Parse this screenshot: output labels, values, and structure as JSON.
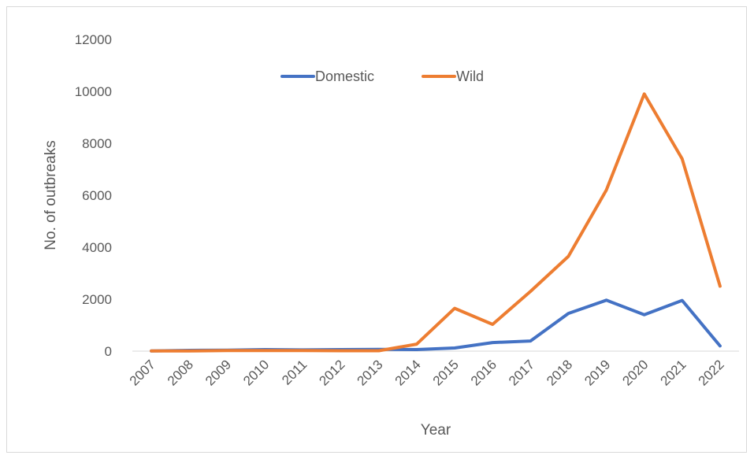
{
  "chart_data": {
    "type": "line",
    "title": "",
    "xlabel": "Year",
    "ylabel": "No. of outbreaks",
    "categories": [
      "2007",
      "2008",
      "2009",
      "2010",
      "2011",
      "2012",
      "2013",
      "2014",
      "2015",
      "2016",
      "2017",
      "2018",
      "2019",
      "2020",
      "2021",
      "2022"
    ],
    "ylim": [
      0,
      12000
    ],
    "yticks": [
      "0",
      "2000",
      "4000",
      "6000",
      "8000",
      "10000",
      "12000"
    ],
    "grid": false,
    "legend_position": "top-center",
    "series": [
      {
        "name": "Domestic",
        "color": "#4472C4",
        "values": [
          5,
          30,
          40,
          60,
          50,
          60,
          70,
          60,
          120,
          330,
          390,
          1450,
          1960,
          1400,
          1950,
          200
        ]
      },
      {
        "name": "Wild",
        "color": "#ED7D31",
        "values": [
          5,
          5,
          20,
          20,
          20,
          15,
          15,
          270,
          1650,
          1030,
          2300,
          3650,
          6200,
          9900,
          7400,
          2500
        ]
      }
    ]
  }
}
